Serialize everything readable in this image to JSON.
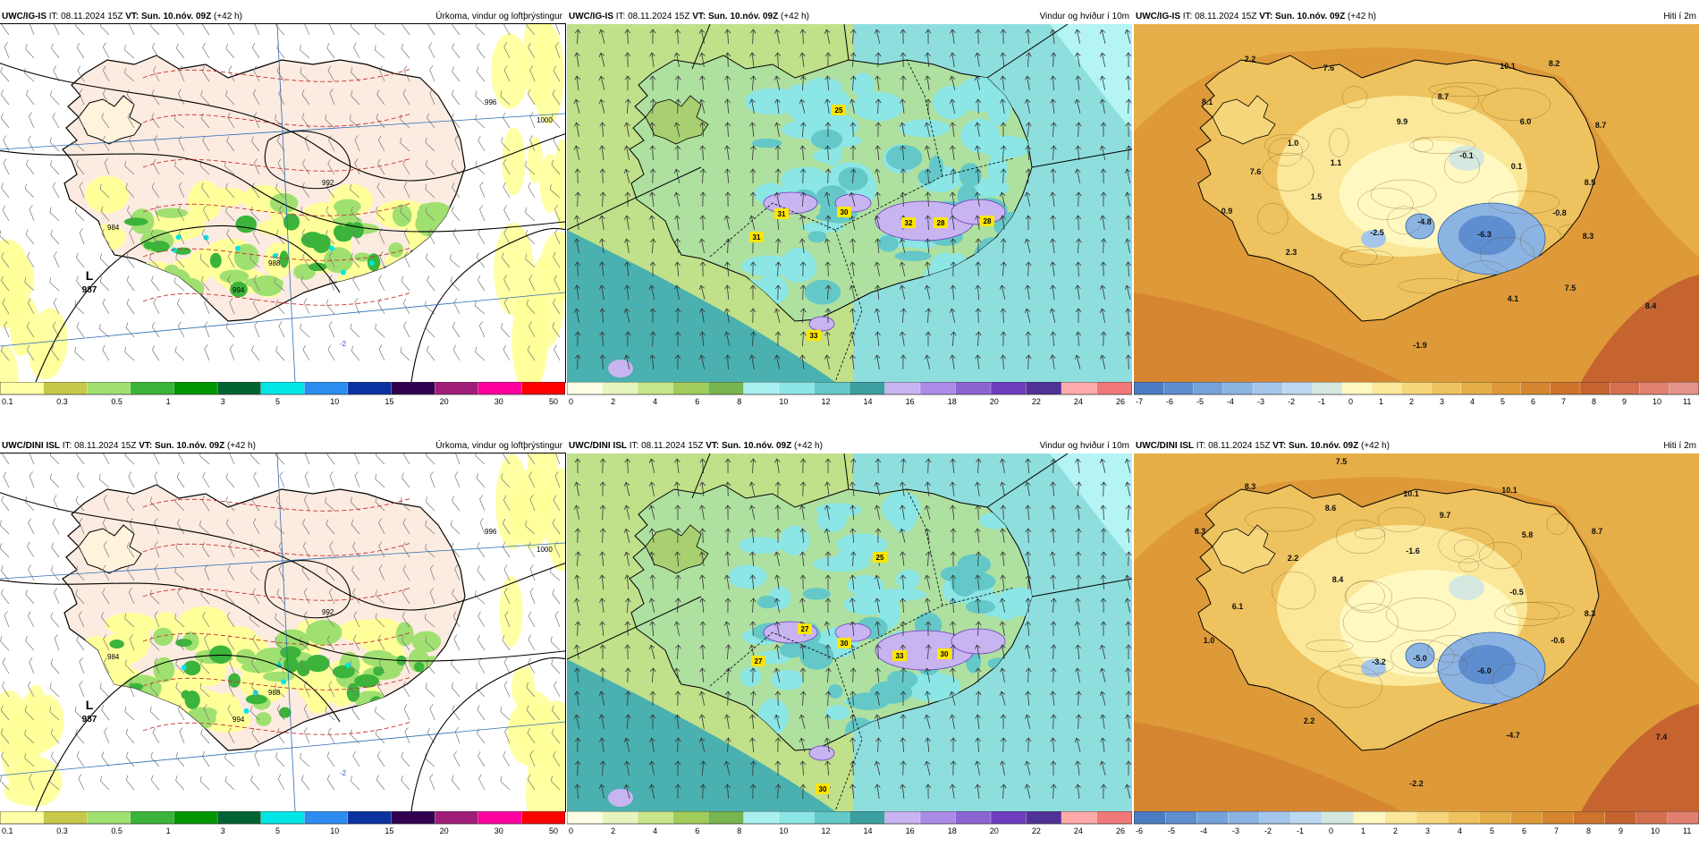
{
  "rows": [
    {
      "panels": [
        {
          "model": "UWC/IG-IS",
          "it_label": "IT:",
          "it_value": "08.11.2024 15Z",
          "vt_label": "VT:",
          "vt_value": "Sun. 10.nóv. 09Z",
          "lead": "(+42 h)",
          "title": "Úrkoma, vindur og loftþrýstingur",
          "kind": "precip",
          "low": {
            "letter": "L",
            "value": "987"
          },
          "labels": [
            "1000",
            "996",
            "992",
            "988",
            "984",
            "994",
            "-2"
          ],
          "colorbar": {
            "colors": [
              "#ffffa8",
              "#c8c84a",
              "#a0e070",
              "#3cb43c",
              "#009600",
              "#006432",
              "#00e6e6",
              "#2d8cf0",
              "#0a32a0",
              "#320050",
              "#a01e78",
              "#ff00a0",
              "#ff0000"
            ],
            "ticks": [
              "0.1",
              "0.3",
              "0.5",
              "1",
              "3",
              "5",
              "10",
              "15",
              "20",
              "30",
              "50"
            ]
          }
        },
        {
          "model": "UWC/IG-IS",
          "it_label": "IT:",
          "it_value": "08.11.2024 15Z",
          "vt_label": "VT:",
          "vt_value": "Sun. 10.nóv. 09Z",
          "lead": "(+42 h)",
          "title": "Vindur og hviður í 10m",
          "kind": "wind",
          "gusts": [
            "25",
            "31",
            "31",
            "30",
            "32",
            "28",
            "28",
            "33"
          ],
          "colorbar": {
            "colors": [
              "#ffffe6",
              "#e6f5be",
              "#c8e68c",
              "#a0cc5a",
              "#78b450",
              "#aaf0f0",
              "#8ce6e6",
              "#64c8c8",
              "#3ca0a0",
              "#c8b4f0",
              "#aa8ce6",
              "#8c64d2",
              "#6e3cbe",
              "#503296",
              "#ffaaaa",
              "#f07878"
            ],
            "ticks": [
              "0",
              "2",
              "4",
              "6",
              "8",
              "10",
              "12",
              "14",
              "16",
              "18",
              "20",
              "22",
              "24",
              "26"
            ]
          }
        },
        {
          "model": "UWC/IG-IS",
          "it_label": "IT:",
          "it_value": "08.11.2024 15Z",
          "vt_label": "VT:",
          "vt_value": "Sun. 10.nóv. 09Z",
          "lead": "(+42 h)",
          "title": "Hiti í 2m",
          "kind": "temp",
          "temps": [
            "2.2",
            "7.6",
            "10.1",
            "8.2",
            "8.1",
            "8.7",
            "9.9",
            "6.0",
            "8.7",
            "1.0",
            "1.1",
            "-0.1",
            "0.1",
            "7.6",
            "1.5",
            "8.5",
            "0.9",
            "-2.5",
            "-4.8",
            "-6.3",
            "-0.8",
            "8.3",
            "2.3",
            "7.5",
            "4.1",
            "8.4",
            "-1.9"
          ],
          "colorbar": {
            "colors": [
              "#4a7cc4",
              "#5e8ed0",
              "#76a2da",
              "#8cb4e2",
              "#a4c6ea",
              "#bcd8f0",
              "#d4e8e0",
              "#fff8c0",
              "#fbe89a",
              "#f5d67a",
              "#eec25e",
              "#e6ae48",
              "#de9a38",
              "#d68630",
              "#ce742c",
              "#c66430",
              "#d47050",
              "#e08070",
              "#e29488"
            ],
            "ticks": [
              "-7",
              "-6",
              "-5",
              "-4",
              "-3",
              "-2",
              "-1",
              "0",
              "1",
              "2",
              "3",
              "4",
              "5",
              "6",
              "7",
              "8",
              "9",
              "10",
              "11"
            ]
          }
        }
      ]
    },
    {
      "panels": [
        {
          "model": "UWC/DINI ISL",
          "it_label": "IT:",
          "it_value": "08.11.2024 15Z",
          "vt_label": "VT:",
          "vt_value": "Sun. 10.nóv. 09Z",
          "lead": "(+42 h)",
          "title": "Úrkoma, vindur og loftþrýstingur",
          "kind": "precip",
          "low": {
            "letter": "L",
            "value": "987"
          },
          "labels": [
            "1000",
            "996",
            "992",
            "988",
            "984",
            "994",
            "-2"
          ],
          "colorbar": {
            "colors": [
              "#ffffa8",
              "#c8c84a",
              "#a0e070",
              "#3cb43c",
              "#009600",
              "#006432",
              "#00e6e6",
              "#2d8cf0",
              "#0a32a0",
              "#320050",
              "#a01e78",
              "#ff00a0",
              "#ff0000"
            ],
            "ticks": [
              "0.1",
              "0.3",
              "0.5",
              "1",
              "3",
              "5",
              "10",
              "15",
              "20",
              "30",
              "50"
            ]
          }
        },
        {
          "model": "UWC/DINI ISL",
          "it_label": "IT:",
          "it_value": "08.11.2024 15Z",
          "vt_label": "VT:",
          "vt_value": "Sun. 10.nóv. 09Z",
          "lead": "(+42 h)",
          "title": "Vindur og hviður í 10m",
          "kind": "wind",
          "gusts": [
            "25",
            "27",
            "30",
            "27",
            "33",
            "30",
            "30"
          ],
          "colorbar": {
            "colors": [
              "#ffffe6",
              "#e6f5be",
              "#c8e68c",
              "#a0cc5a",
              "#78b450",
              "#aaf0f0",
              "#8ce6e6",
              "#64c8c8",
              "#3ca0a0",
              "#c8b4f0",
              "#aa8ce6",
              "#8c64d2",
              "#6e3cbe",
              "#503296",
              "#ffaaaa",
              "#f07878"
            ],
            "ticks": [
              "0",
              "2",
              "4",
              "6",
              "8",
              "10",
              "12",
              "14",
              "16",
              "18",
              "20",
              "22",
              "24",
              "26"
            ]
          }
        },
        {
          "model": "UWC/DINI ISL",
          "it_label": "IT:",
          "it_value": "08.11.2024 15Z",
          "vt_label": "VT:",
          "vt_value": "Sun. 10.nóv. 09Z",
          "lead": "(+42 h)",
          "title": "Hiti í 2m",
          "kind": "temp",
          "temps": [
            "7.5",
            "8.3",
            "10.1",
            "10.1",
            "8.6",
            "9.7",
            "8.3",
            "2.2",
            "-1.6",
            "5.8",
            "8.7",
            "8.4",
            "-0.5",
            "6.1",
            "8.3",
            "1.0",
            "-3.2",
            "-5.0",
            "-6.0",
            "-0.6",
            "2.2",
            "-4.7",
            "7.4",
            "-2.2"
          ],
          "colorbar": {
            "colors": [
              "#4a7cc4",
              "#5e8ed0",
              "#76a2da",
              "#8cb4e2",
              "#a4c6ea",
              "#bcd8f0",
              "#d4e8e0",
              "#fff8c0",
              "#fbe89a",
              "#f5d67a",
              "#eec25e",
              "#e6ae48",
              "#de9a38",
              "#d68630",
              "#ce742c",
              "#c66430",
              "#d47050",
              "#e08070"
            ],
            "ticks": [
              "-6",
              "-5",
              "-4",
              "-3",
              "-2",
              "-1",
              "0",
              "1",
              "2",
              "3",
              "4",
              "5",
              "6",
              "7",
              "8",
              "9",
              "10",
              "11"
            ]
          }
        }
      ]
    }
  ]
}
